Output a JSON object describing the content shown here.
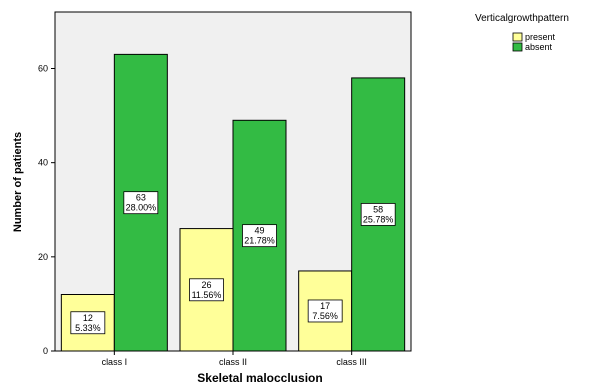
{
  "chart_data": {
    "type": "bar",
    "categories": [
      "class I",
      "class II",
      "class III"
    ],
    "series": [
      {
        "name": "present",
        "values": [
          12,
          26,
          17
        ],
        "labels": [
          "5.33%",
          "11.56%",
          "7.56%"
        ],
        "color": "#ffff99"
      },
      {
        "name": "absent",
        "values": [
          63,
          49,
          58
        ],
        "labels": [
          "28.00%",
          "21.78%",
          "25.78%"
        ],
        "color": "#33bb44"
      }
    ],
    "xlabel": "Skeletal malocclusion",
    "ylabel": "Number of patients",
    "ylim": [
      0,
      72
    ],
    "yticks": [
      0,
      20,
      40,
      60
    ],
    "legend_title": "Verticalgrowthpattern",
    "legend_position": "top-right",
    "plot_background": "#f0f0f0",
    "grid": false
  }
}
